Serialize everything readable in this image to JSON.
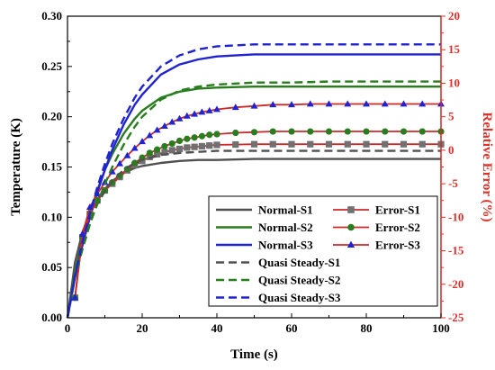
{
  "chart_data": {
    "type": "line",
    "xlabel": "Time (s)",
    "ylabel": "Temperature (K)",
    "y2label": "Relative Error (%)",
    "xlim": [
      0,
      100
    ],
    "ylim": [
      0,
      0.3
    ],
    "y2lim": [
      -25,
      20
    ],
    "x_ticks": [
      0,
      20,
      40,
      60,
      80,
      100
    ],
    "y_ticks": [
      0.0,
      0.05,
      0.1,
      0.15,
      0.2,
      0.25,
      0.3
    ],
    "y_tick_labels": [
      "0.00",
      "0.05",
      "0.10",
      "0.15",
      "0.20",
      "0.25",
      "0.30"
    ],
    "y2_ticks": [
      -25,
      -20,
      -15,
      -10,
      -5,
      0,
      5,
      10,
      15,
      20
    ],
    "grid": false,
    "legend_position": "bottom-right",
    "colors": {
      "gray": "#505050",
      "green": "#2a7d1e",
      "blue": "#1f23d1",
      "red_axis": "#e0302a",
      "error_line": "#cc2a2a"
    },
    "series": [
      {
        "name": "Normal-S1",
        "axis": "left",
        "style": "solid",
        "color": "#505050",
        "x": [
          0,
          2,
          4,
          6,
          8,
          10,
          12,
          15,
          18,
          20,
          25,
          30,
          35,
          40,
          50,
          60,
          70,
          80,
          90,
          100
        ],
        "y": [
          0,
          0.055,
          0.085,
          0.104,
          0.118,
          0.128,
          0.136,
          0.144,
          0.149,
          0.151,
          0.154,
          0.156,
          0.157,
          0.157,
          0.158,
          0.158,
          0.158,
          0.158,
          0.158,
          0.158
        ]
      },
      {
        "name": "Normal-S2",
        "axis": "left",
        "style": "solid",
        "color": "#2a7d1e",
        "x": [
          0,
          2,
          4,
          6,
          8,
          10,
          12,
          15,
          18,
          20,
          25,
          30,
          35,
          40,
          50,
          60,
          70,
          80,
          90,
          100
        ],
        "y": [
          0,
          0.045,
          0.078,
          0.104,
          0.127,
          0.147,
          0.163,
          0.183,
          0.198,
          0.206,
          0.219,
          0.225,
          0.228,
          0.229,
          0.23,
          0.23,
          0.23,
          0.23,
          0.23,
          0.23
        ]
      },
      {
        "name": "Normal-S3",
        "axis": "left",
        "style": "solid",
        "color": "#1f23d1",
        "x": [
          0,
          2,
          4,
          6,
          8,
          10,
          12,
          15,
          18,
          20,
          25,
          30,
          35,
          40,
          50,
          60,
          70,
          80,
          90,
          100
        ],
        "y": [
          0,
          0.04,
          0.072,
          0.1,
          0.125,
          0.147,
          0.167,
          0.192,
          0.212,
          0.222,
          0.242,
          0.252,
          0.257,
          0.26,
          0.262,
          0.262,
          0.262,
          0.262,
          0.262,
          0.262
        ]
      },
      {
        "name": "Error-S1",
        "axis": "right",
        "marker": "square",
        "color": "#cc2a2a",
        "marker_color": "#707070",
        "x": [
          2,
          4,
          6,
          8,
          10,
          12,
          14,
          16,
          18,
          20,
          22,
          24,
          26,
          28,
          30,
          32,
          34,
          36,
          38,
          40,
          45,
          50,
          55,
          60,
          65,
          70,
          75,
          80,
          85,
          90,
          95,
          100
        ],
        "y": [
          -22,
          -13,
          -9.5,
          -7.5,
          -6,
          -5,
          -4,
          -3,
          -2.2,
          -1.6,
          -1,
          -0.6,
          -0.3,
          0,
          0.2,
          0.4,
          0.5,
          0.6,
          0.7,
          0.8,
          0.85,
          0.9,
          0.9,
          0.9,
          0.9,
          0.9,
          0.9,
          0.9,
          0.9,
          0.9,
          0.9,
          0.9
        ]
      },
      {
        "name": "Error-S2",
        "axis": "right",
        "marker": "circle",
        "color": "#cc2a2a",
        "marker_color": "#2a7d1e",
        "x": [
          2,
          4,
          6,
          8,
          10,
          12,
          14,
          16,
          18,
          20,
          22,
          24,
          26,
          28,
          30,
          32,
          34,
          36,
          38,
          40,
          45,
          50,
          55,
          60,
          65,
          70,
          75,
          80,
          85,
          90,
          95,
          100
        ],
        "y": [
          -22,
          -13,
          -9.5,
          -7.5,
          -6,
          -4.8,
          -3.8,
          -2.8,
          -1.9,
          -1.1,
          -0.4,
          0.1,
          0.6,
          1,
          1.4,
          1.7,
          1.9,
          2.1,
          2.3,
          2.4,
          2.6,
          2.7,
          2.8,
          2.8,
          2.8,
          2.8,
          2.8,
          2.8,
          2.8,
          2.8,
          2.8,
          2.8
        ]
      },
      {
        "name": "Error-S3",
        "axis": "right",
        "marker": "triangle",
        "color": "#cc2a2a",
        "marker_color": "#1f23d1",
        "x": [
          2,
          4,
          6,
          8,
          10,
          12,
          14,
          16,
          18,
          20,
          22,
          24,
          26,
          28,
          30,
          32,
          34,
          36,
          38,
          40,
          45,
          50,
          55,
          60,
          65,
          70,
          75,
          80,
          85,
          90,
          95,
          100
        ],
        "y": [
          -22,
          -12.5,
          -8.5,
          -6.5,
          -4.8,
          -3.2,
          -2,
          -0.8,
          0.3,
          1.3,
          2.2,
          3,
          3.6,
          4.2,
          4.7,
          5.1,
          5.4,
          5.7,
          5.9,
          6.1,
          6.4,
          6.6,
          6.8,
          6.8,
          6.9,
          6.9,
          6.9,
          6.9,
          6.9,
          6.9,
          6.9,
          6.9
        ]
      },
      {
        "name": "Quasi Steady-S1",
        "axis": "left",
        "style": "dashed",
        "color": "#505050",
        "x": [
          0,
          2,
          4,
          6,
          8,
          10,
          12,
          15,
          18,
          20,
          25,
          30,
          35,
          40,
          50,
          60,
          70,
          80,
          90,
          100
        ],
        "y": [
          0,
          0.04,
          0.072,
          0.095,
          0.113,
          0.126,
          0.136,
          0.147,
          0.154,
          0.157,
          0.162,
          0.164,
          0.165,
          0.166,
          0.166,
          0.166,
          0.166,
          0.166,
          0.166,
          0.166
        ]
      },
      {
        "name": "Quasi Steady-S2",
        "axis": "left",
        "style": "dashed",
        "color": "#2a7d1e",
        "x": [
          0,
          2,
          4,
          6,
          8,
          10,
          12,
          15,
          18,
          20,
          25,
          30,
          35,
          40,
          50,
          60,
          70,
          80,
          90,
          100
        ],
        "y": [
          0,
          0.04,
          0.068,
          0.093,
          0.114,
          0.133,
          0.15,
          0.172,
          0.19,
          0.2,
          0.217,
          0.226,
          0.23,
          0.232,
          0.234,
          0.234,
          0.235,
          0.235,
          0.235,
          0.235
        ]
      },
      {
        "name": "Quasi Steady-S3",
        "axis": "left",
        "style": "dashed",
        "color": "#1f23d1",
        "x": [
          0,
          2,
          4,
          6,
          8,
          10,
          12,
          15,
          18,
          20,
          25,
          30,
          35,
          40,
          50,
          60,
          70,
          80,
          90,
          100
        ],
        "y": [
          0,
          0.042,
          0.075,
          0.104,
          0.13,
          0.153,
          0.173,
          0.198,
          0.219,
          0.23,
          0.25,
          0.261,
          0.267,
          0.27,
          0.272,
          0.272,
          0.272,
          0.272,
          0.272,
          0.272
        ]
      }
    ],
    "legend_order": [
      "Normal-S1",
      "Error-S1",
      "Normal-S2",
      "Error-S2",
      "Normal-S3",
      "Error-S3",
      "Quasi Steady-S1",
      "Quasi Steady-S2",
      "Quasi Steady-S3"
    ]
  }
}
